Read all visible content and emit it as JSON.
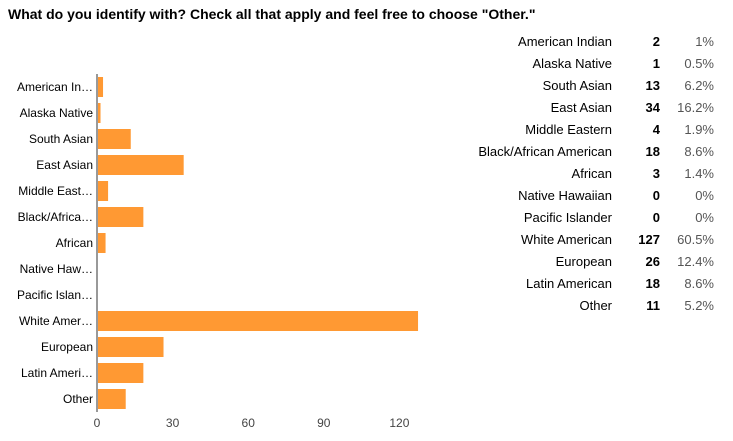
{
  "title": "What do you identify with? Check all that apply and feel free to choose \"Other.\"",
  "chart_data": {
    "type": "bar",
    "orientation": "horizontal",
    "categories": [
      "American In…",
      "Alaska Native",
      "South Asian",
      "East Asian",
      "Middle East…",
      "Black/Africa…",
      "African",
      "Native Haw…",
      "Pacific Islan…",
      "White Amer…",
      "European",
      "Latin Ameri…",
      "Other"
    ],
    "values": [
      2,
      1,
      13,
      34,
      4,
      18,
      3,
      0,
      0,
      127,
      26,
      18,
      11
    ],
    "x_ticks": [
      0,
      30,
      60,
      90,
      120
    ],
    "xlim": [
      0,
      127
    ],
    "bar_color": "#FF9933",
    "grid": false
  },
  "summary": {
    "rows": [
      {
        "category": "American Indian",
        "count": "2",
        "percent": "1%"
      },
      {
        "category": "Alaska Native",
        "count": "1",
        "percent": "0.5%"
      },
      {
        "category": "South Asian",
        "count": "13",
        "percent": "6.2%"
      },
      {
        "category": "East Asian",
        "count": "34",
        "percent": "16.2%"
      },
      {
        "category": "Middle Eastern",
        "count": "4",
        "percent": "1.9%"
      },
      {
        "category": "Black/African American",
        "count": "18",
        "percent": "8.6%"
      },
      {
        "category": "African",
        "count": "3",
        "percent": "1.4%"
      },
      {
        "category": "Native Hawaiian",
        "count": "0",
        "percent": "0%"
      },
      {
        "category": "Pacific Islander",
        "count": "0",
        "percent": "0%"
      },
      {
        "category": "White American",
        "count": "127",
        "percent": "60.5%"
      },
      {
        "category": "European",
        "count": "26",
        "percent": "12.4%"
      },
      {
        "category": "Latin American",
        "count": "18",
        "percent": "8.6%"
      },
      {
        "category": "Other",
        "count": "11",
        "percent": "5.2%"
      }
    ]
  }
}
